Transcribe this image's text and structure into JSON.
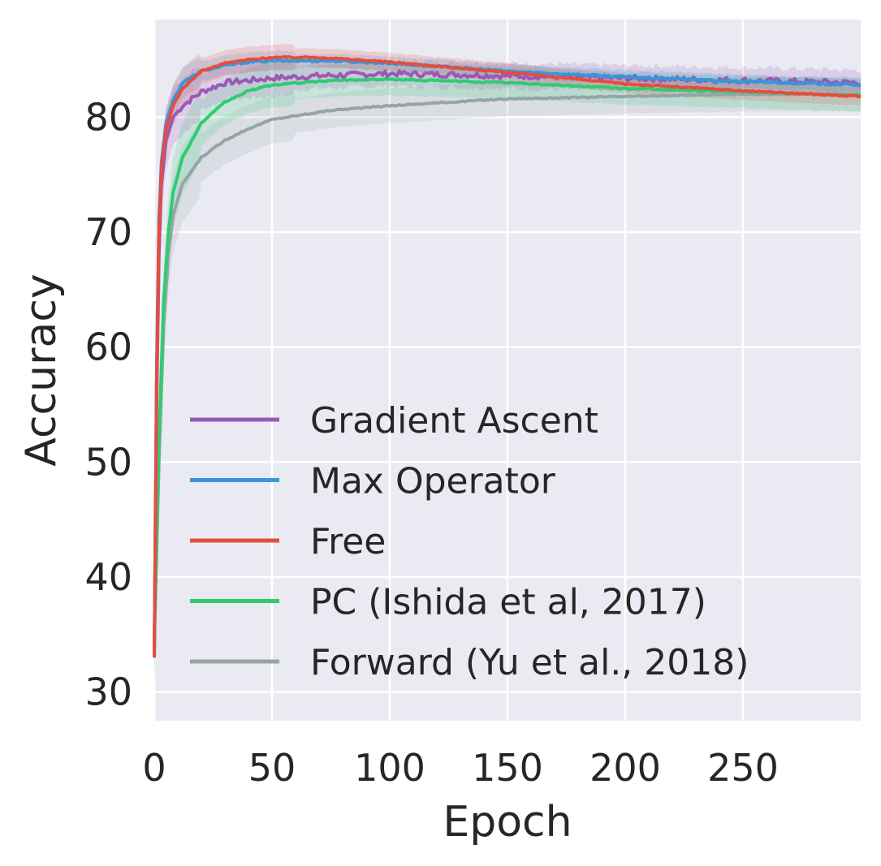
{
  "chart_data": {
    "type": "line",
    "xlabel": "Epoch",
    "ylabel": "Accuracy",
    "xlim": [
      0,
      300
    ],
    "ylim": [
      27.5,
      88.5
    ],
    "x_ticks": [
      0,
      50,
      100,
      150,
      200,
      250
    ],
    "x_tick_labels": [
      "0",
      "50",
      "100",
      "150",
      "200",
      "250"
    ],
    "y_ticks": [
      30,
      40,
      50,
      60,
      70,
      80
    ],
    "y_tick_labels": [
      "30",
      "40",
      "50",
      "60",
      "70",
      "80"
    ],
    "grid": true,
    "background": "#eaeaf2",
    "legend_position": "lower-left",
    "series": [
      {
        "name": "Gradient Ascent",
        "color": "#9b59b6",
        "noise": 0.25,
        "band": 1.1,
        "points": [
          [
            0,
            33
          ],
          [
            1,
            55
          ],
          [
            2,
            68
          ],
          [
            3,
            74
          ],
          [
            5,
            78
          ],
          [
            8,
            80
          ],
          [
            12,
            81
          ],
          [
            20,
            82.2
          ],
          [
            30,
            83
          ],
          [
            40,
            83.2
          ],
          [
            50,
            83.4
          ],
          [
            70,
            83.6
          ],
          [
            100,
            83.8
          ],
          [
            130,
            83.7
          ],
          [
            150,
            83.6
          ],
          [
            200,
            83.4
          ],
          [
            250,
            83.2
          ],
          [
            300,
            83
          ]
        ]
      },
      {
        "name": "Max Operator",
        "color": "#3498db",
        "noise": 0.08,
        "band": 0.6,
        "points": [
          [
            0,
            33
          ],
          [
            1,
            58
          ],
          [
            2,
            71
          ],
          [
            3,
            76
          ],
          [
            5,
            79.5
          ],
          [
            8,
            81.5
          ],
          [
            12,
            83
          ],
          [
            20,
            84
          ],
          [
            30,
            84.5
          ],
          [
            40,
            84.8
          ],
          [
            50,
            84.9
          ],
          [
            75,
            84.9
          ],
          [
            100,
            84.7
          ],
          [
            150,
            84
          ],
          [
            200,
            83.5
          ],
          [
            250,
            83.1
          ],
          [
            300,
            82.8
          ]
        ]
      },
      {
        "name": "Free",
        "color": "#e74c3c",
        "noise": 0.06,
        "band": 0.8,
        "points": [
          [
            0,
            33
          ],
          [
            1,
            57
          ],
          [
            2,
            70
          ],
          [
            3,
            75.5
          ],
          [
            5,
            79
          ],
          [
            8,
            81
          ],
          [
            12,
            82.5
          ],
          [
            20,
            84
          ],
          [
            30,
            84.7
          ],
          [
            40,
            85
          ],
          [
            50,
            85.2
          ],
          [
            70,
            85.2
          ],
          [
            100,
            84.8
          ],
          [
            150,
            83.9
          ],
          [
            200,
            82.9
          ],
          [
            250,
            82.3
          ],
          [
            300,
            81.8
          ]
        ]
      },
      {
        "name": "PC (Ishida et al, 2017)",
        "color": "#2ecc71",
        "noise": 0.06,
        "band": 1.4,
        "points": [
          [
            0,
            34.5
          ],
          [
            2,
            52
          ],
          [
            4,
            64
          ],
          [
            6,
            70
          ],
          [
            8,
            73.5
          ],
          [
            12,
            76.5
          ],
          [
            20,
            79.5
          ],
          [
            30,
            81.3
          ],
          [
            40,
            82.3
          ],
          [
            50,
            82.8
          ],
          [
            75,
            83.2
          ],
          [
            100,
            83.3
          ],
          [
            150,
            83
          ],
          [
            200,
            82.5
          ],
          [
            250,
            82.2
          ],
          [
            300,
            81.9
          ]
        ]
      },
      {
        "name": "Forward (Yu et al., 2018)",
        "color": "#95a5a6",
        "noise": 0.05,
        "band": 1.5,
        "points": [
          [
            0,
            34
          ],
          [
            2,
            50
          ],
          [
            4,
            62
          ],
          [
            6,
            68
          ],
          [
            8,
            71.5
          ],
          [
            12,
            74.2
          ],
          [
            20,
            76.5
          ],
          [
            30,
            78
          ],
          [
            40,
            79
          ],
          [
            50,
            79.8
          ],
          [
            75,
            80.6
          ],
          [
            100,
            81
          ],
          [
            150,
            81.6
          ],
          [
            200,
            81.8
          ],
          [
            250,
            82
          ],
          [
            300,
            82
          ]
        ]
      }
    ]
  }
}
